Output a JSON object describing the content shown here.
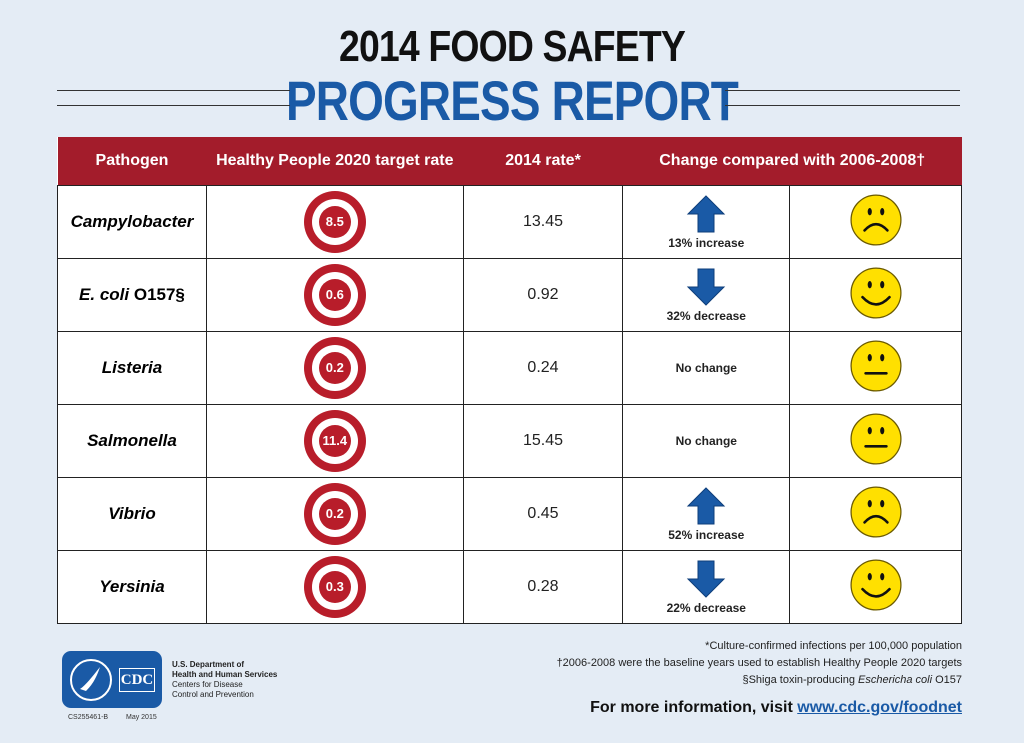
{
  "header": {
    "title_line1": "2014 FOOD SAFETY",
    "title_line2": "PROGRESS REPORT"
  },
  "table": {
    "columns": [
      "Pathogen",
      "Healthy People 2020 target rate",
      "2014 rate*",
      "Change compared with 2006-2008†"
    ],
    "rows": [
      {
        "pathogen": "Campylobacter",
        "suffix": "",
        "target": "8.5",
        "rate": "13.45",
        "direction": "up",
        "change": "13% increase",
        "face": "frown"
      },
      {
        "pathogen": "E. coli",
        "suffix": " O157§",
        "target": "0.6",
        "rate": "0.92",
        "direction": "down",
        "change": "32% decrease",
        "face": "smile"
      },
      {
        "pathogen": "Listeria",
        "suffix": "",
        "target": "0.2",
        "rate": "0.24",
        "direction": "none",
        "change": "No change",
        "face": "neutral"
      },
      {
        "pathogen": "Salmonella",
        "suffix": "",
        "target": "11.4",
        "rate": "15.45",
        "direction": "none",
        "change": "No change",
        "face": "neutral"
      },
      {
        "pathogen": "Vibrio",
        "suffix": "",
        "target": "0.2",
        "rate": "0.45",
        "direction": "up",
        "change": "52% increase",
        "face": "frown"
      },
      {
        "pathogen": "Yersinia",
        "suffix": "",
        "target": "0.3",
        "rate": "0.28",
        "direction": "down",
        "change": "22% decrease",
        "face": "smile"
      }
    ]
  },
  "footnotes": {
    "note1": "*Culture-confirmed infections per 100,000 population",
    "note2": "†2006-2008 were the baseline years used to establish Healthy People 2020 targets",
    "note3_pre": "§Shiga toxin-producing ",
    "note3_italic": "Eschericha coli",
    "note3_post": " O157",
    "more_pre": "For more information, visit ",
    "more_link": "www.cdc.gov/foodnet"
  },
  "logo": {
    "cdc": "CDC",
    "hhs1": "U.S. Department of",
    "hhs2": "Health and Human Services",
    "cdc1": "Centers for Disease",
    "cdc2": "Control and Prevention",
    "code": "CS255461-B",
    "date": "May 2015"
  },
  "colors": {
    "header_red": "#a31c2b",
    "title_blue": "#1a5aa6",
    "arrow_blue": "#1a5aa6",
    "face_yellow": "#ffe000"
  }
}
